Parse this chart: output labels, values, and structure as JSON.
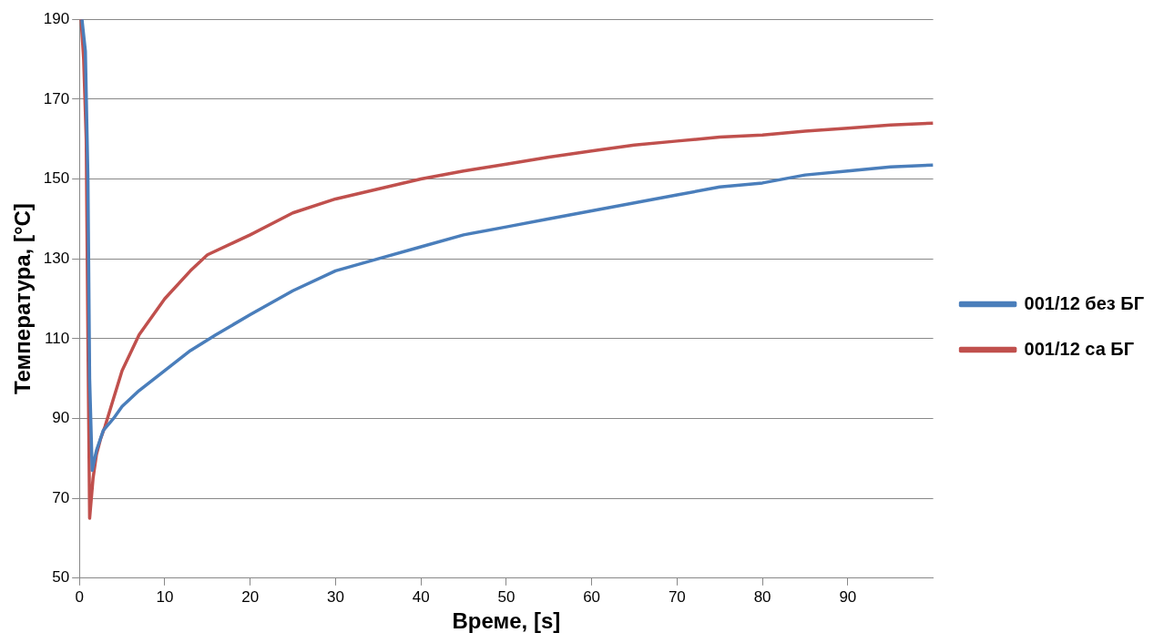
{
  "chart_data": {
    "type": "line",
    "xlabel": "Време, [s]",
    "ylabel": "Температура, [°C]",
    "xlim": [
      0,
      100
    ],
    "xticks": [
      0,
      10,
      20,
      30,
      40,
      50,
      60,
      70,
      80,
      90
    ],
    "ylim": [
      50,
      190
    ],
    "yticks": [
      50,
      70,
      90,
      110,
      130,
      150,
      170,
      190
    ],
    "grid": "y",
    "legend": "right",
    "marker": "none",
    "line_style": "solid",
    "series": [
      {
        "name": "001/12 без БГ",
        "color": "#4a7ebb",
        "x": [
          0.3,
          0.7,
          1.0,
          1.2,
          1.5,
          2,
          2.8,
          4,
          5,
          7,
          10,
          13,
          16,
          20,
          25,
          30,
          35,
          40,
          45,
          50,
          55,
          60,
          65,
          70,
          75,
          80,
          85,
          90,
          95,
          100
        ],
        "values": [
          190,
          182,
          150,
          100,
          77,
          82,
          87,
          90,
          93,
          97,
          102,
          107,
          111,
          116,
          122,
          127,
          130,
          133,
          136,
          138,
          140,
          142,
          144,
          146,
          148,
          149,
          151,
          152,
          153,
          153.5
        ]
      },
      {
        "name": "001/12 са БГ",
        "color": "#c0504d",
        "x": [
          0.2,
          0.5,
          0.8,
          1.0,
          1.2,
          1.6,
          2,
          2.5,
          3,
          4,
          5,
          7,
          10,
          13,
          15,
          18,
          20,
          25,
          30,
          35,
          40,
          45,
          50,
          55,
          60,
          65,
          70,
          75,
          80,
          85,
          90,
          95,
          100
        ],
        "values": [
          190,
          180,
          160,
          110,
          65,
          75,
          81,
          85,
          88,
          95,
          102,
          111,
          120,
          127,
          131,
          134,
          136,
          141.5,
          145,
          147.5,
          150,
          152,
          153.7,
          155.5,
          157,
          158.5,
          159.5,
          160.5,
          161,
          162,
          162.7,
          163.5,
          164
        ]
      }
    ]
  }
}
